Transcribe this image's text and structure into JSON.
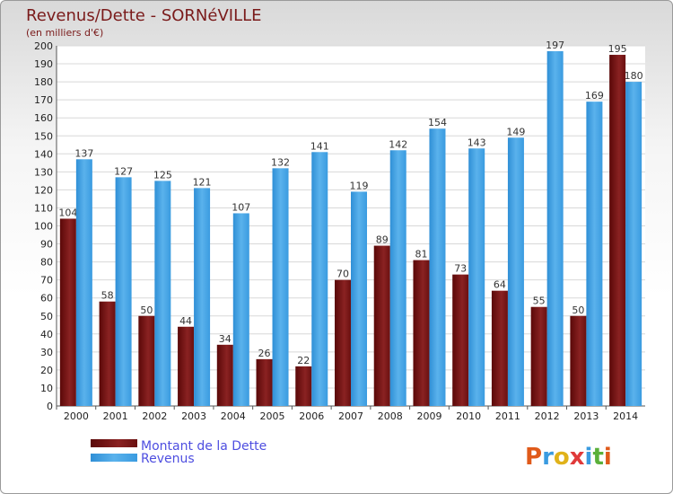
{
  "chart_data": {
    "type": "bar",
    "title": "Revenus/Dette - SORNéVILLE",
    "subtitle": "(en milliers d'€)",
    "categories": [
      "2000",
      "2001",
      "2002",
      "2003",
      "2004",
      "2005",
      "2006",
      "2007",
      "2008",
      "2009",
      "2010",
      "2011",
      "2012",
      "2013",
      "2014"
    ],
    "series": [
      {
        "name": "Montant de la Dette",
        "color": "#7a1414",
        "values": [
          104,
          58,
          50,
          44,
          34,
          26,
          22,
          70,
          89,
          81,
          73,
          64,
          55,
          50,
          195
        ]
      },
      {
        "name": "Revenus",
        "color": "#3d9ee0",
        "values": [
          137,
          127,
          125,
          121,
          107,
          132,
          141,
          119,
          142,
          154,
          143,
          149,
          197,
          169,
          180
        ]
      }
    ],
    "ylim": [
      0,
      200
    ],
    "ytick_step": 10,
    "grid": true,
    "legend_position": "bottom-left"
  },
  "brand": {
    "logo_text": "Proxiti"
  }
}
